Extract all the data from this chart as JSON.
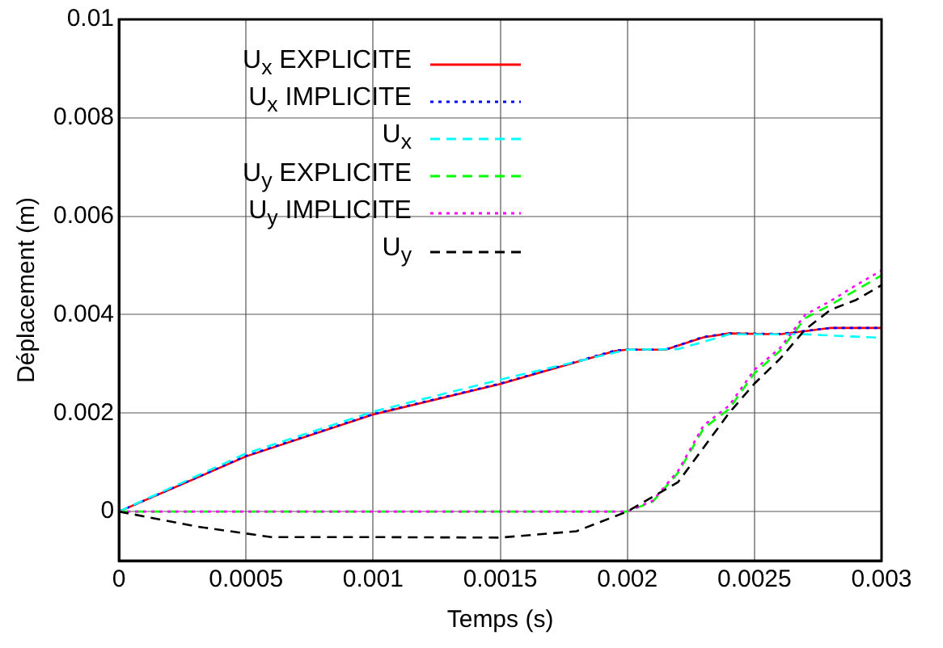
{
  "chart_data": {
    "type": "line",
    "xlabel": "Temps (s)",
    "ylabel": "Déplacement (m)",
    "xlim": [
      0,
      0.003
    ],
    "ylim": [
      -0.001,
      0.01
    ],
    "xticks": [
      0,
      0.0005,
      0.001,
      0.0015,
      0.002,
      0.0025,
      0.003
    ],
    "yticks": [
      0,
      0.002,
      0.004,
      0.006,
      0.008,
      0.01
    ],
    "grid": true,
    "legend": "top left",
    "marker": "none",
    "series": [
      {
        "name": "U$_{x}$ EXPLICITE",
        "color": "#ff0000",
        "line_style": "solid",
        "x": [
          0,
          0.0005,
          0.001,
          0.0015,
          0.00195,
          0.002,
          0.00215,
          0.0023,
          0.0024,
          0.0026,
          0.0028,
          0.003
        ],
        "values": [
          0,
          0.00112,
          0.00197,
          0.00259,
          0.00326,
          0.00329,
          0.00329,
          0.00354,
          0.00362,
          0.0036,
          0.00373,
          0.00373
        ]
      },
      {
        "name": "U$_{x}$ IMPLICITE",
        "color": "#0000ff",
        "line_style": "dotted",
        "x": [
          0,
          0.0005,
          0.001,
          0.0015,
          0.00195,
          0.002,
          0.00215,
          0.0023,
          0.0024,
          0.0026,
          0.0028,
          0.003
        ],
        "values": [
          0,
          0.00113,
          0.00198,
          0.0026,
          0.00327,
          0.00329,
          0.00329,
          0.00355,
          0.00362,
          0.00361,
          0.00373,
          0.00373
        ]
      },
      {
        "name": "U$_{x}$",
        "color": "#00ffff",
        "line_style": "dashed",
        "x": [
          0,
          0.0005,
          0.001,
          0.0015,
          0.002,
          0.0022,
          0.0024,
          0.0027,
          0.003
        ],
        "values": [
          0,
          0.00118,
          0.00203,
          0.00268,
          0.00329,
          0.0033,
          0.0036,
          0.0036,
          0.00353
        ]
      },
      {
        "name": "U$_{y}$ EXPLICITE",
        "color": "#00ff00",
        "line_style": "dashed",
        "x": [
          0,
          0.002,
          0.0021,
          0.0022,
          0.0023,
          0.0024,
          0.0025,
          0.0026,
          0.0027,
          0.0028,
          0.0029,
          0.003
        ],
        "values": [
          0,
          0,
          0.0002,
          0.00079,
          0.00169,
          0.00208,
          0.00281,
          0.00326,
          0.00393,
          0.0042,
          0.0045,
          0.0048
        ]
      },
      {
        "name": "U$_{y}$ IMPLICITE",
        "color": "#ff00ff",
        "line_style": "dotted",
        "x": [
          0,
          0.002,
          0.0021,
          0.0022,
          0.0023,
          0.0024,
          0.0025,
          0.0026,
          0.0027,
          0.0028,
          0.0029,
          0.003
        ],
        "values": [
          0,
          0,
          0.00022,
          0.00083,
          0.00175,
          0.00215,
          0.00288,
          0.00332,
          0.004,
          0.00428,
          0.0046,
          0.0049
        ]
      },
      {
        "name": "U$_{y}$",
        "color": "#000000",
        "line_style": "dashed",
        "x": [
          0,
          0.0003,
          0.0006,
          0.001,
          0.0015,
          0.0018,
          0.0019,
          0.002,
          0.0022,
          0.0023,
          0.0024,
          0.0025,
          0.0026,
          0.0027,
          0.0028,
          0.0029,
          0.003
        ],
        "values": [
          0,
          -0.0003,
          -0.00052,
          -0.00052,
          -0.00053,
          -0.0004,
          -0.0002,
          0,
          0.0006,
          0.0013,
          0.002,
          0.0026,
          0.0031,
          0.0037,
          0.0041,
          0.0043,
          0.0046
        ]
      }
    ]
  }
}
